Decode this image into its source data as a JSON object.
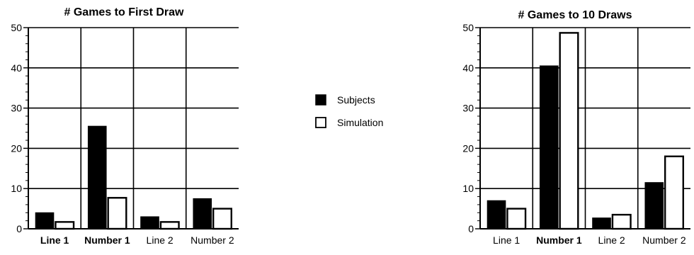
{
  "legend": {
    "subjects_label": "Subjects",
    "simulation_label": "Simulation"
  },
  "colors": {
    "subjects": "#000000",
    "simulation": "#ffffff",
    "axis": "#000000"
  },
  "chart_data": [
    {
      "type": "bar",
      "title": "# Games to First Draw",
      "categories": [
        "Line 1",
        "Number 1",
        "Line 2",
        "Number 2"
      ],
      "bold_categories": [
        "Line 1",
        "Number 1"
      ],
      "series": [
        {
          "name": "Subjects",
          "values": [
            4,
            25.5,
            3,
            7.5
          ]
        },
        {
          "name": "Simulation",
          "values": [
            1.7,
            7.7,
            1.7,
            5
          ]
        }
      ],
      "xlabel": "",
      "ylabel": "",
      "ylim": [
        0,
        50
      ],
      "yticks": [
        0,
        10,
        20,
        30,
        40,
        50
      ],
      "grid": true,
      "legend_position": "right"
    },
    {
      "type": "bar",
      "title": "# Games to 10 Draws",
      "categories": [
        "Line 1",
        "Number 1",
        "Line 2",
        "Number 2"
      ],
      "bold_categories": [
        "Number 1"
      ],
      "series": [
        {
          "name": "Subjects",
          "values": [
            7,
            40.5,
            2.7,
            11.5
          ]
        },
        {
          "name": "Simulation",
          "values": [
            5,
            48.7,
            3.5,
            18
          ]
        }
      ],
      "xlabel": "",
      "ylabel": "",
      "ylim": [
        0,
        50
      ],
      "yticks": [
        0,
        10,
        20,
        30,
        40,
        50
      ],
      "grid": true,
      "legend_position": "left"
    }
  ]
}
